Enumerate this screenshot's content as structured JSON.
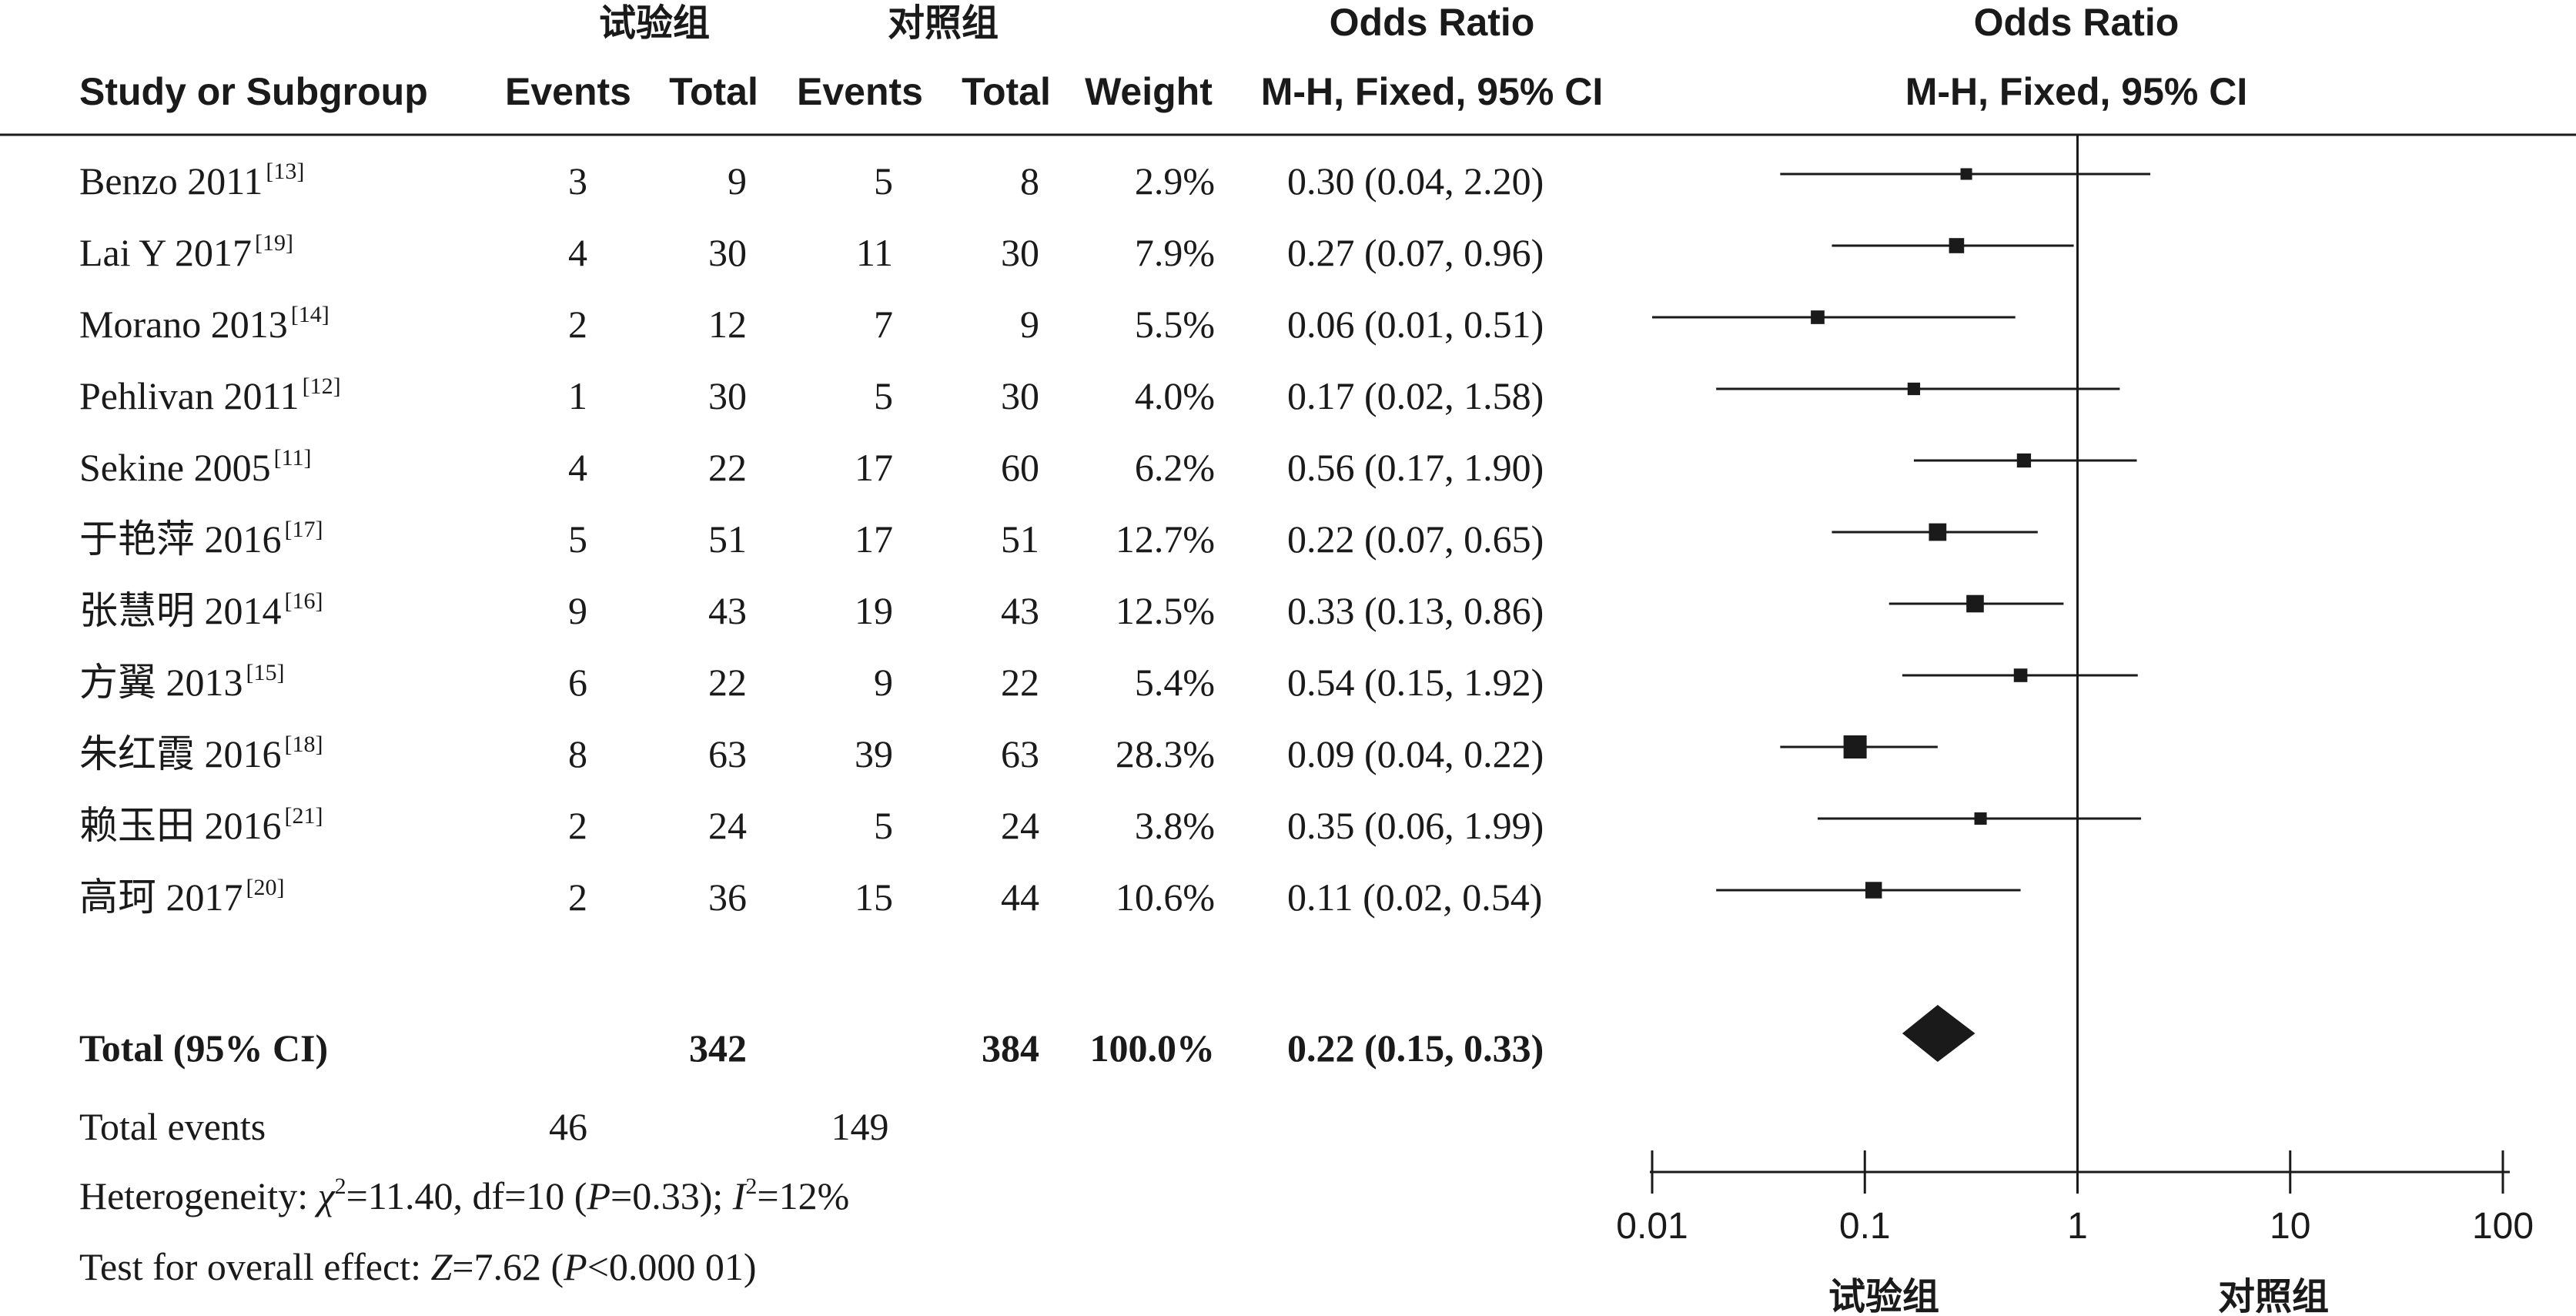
{
  "header": {
    "group1": "试验组",
    "group2": "对照组",
    "study_col": "Study or Subgroup",
    "events1": "Events",
    "total1": "Total",
    "events2": "Events",
    "total2": "Total",
    "weight": "Weight",
    "or_title": "Odds Ratio",
    "or_method": "M-H, Fixed, 95% CI",
    "plot_title": "Odds Ratio",
    "plot_method": "M-H, Fixed, 95% CI"
  },
  "chart_data": {
    "type": "forest",
    "scale": "log",
    "xlim": [
      0.01,
      100
    ],
    "ticks": [
      "0.01",
      "0.1",
      "1",
      "10",
      "100"
    ],
    "tick_values": [
      0.01,
      0.1,
      1,
      10,
      100
    ],
    "favours_left": "试验组",
    "favours_right": "对照组",
    "studies": [
      {
        "name": "Benzo 2011",
        "ref": "[13]",
        "e1": "3",
        "t1": "9",
        "e2": "5",
        "t2": "8",
        "weight": "2.9%",
        "ci_text": "0.30 (0.04, 2.20)",
        "or": 0.3,
        "lo": 0.04,
        "hi": 2.2,
        "w": 2.9
      },
      {
        "name": "Lai Y 2017",
        "ref": "[19]",
        "e1": "4",
        "t1": "30",
        "e2": "11",
        "t2": "30",
        "weight": "7.9%",
        "ci_text": "0.27 (0.07, 0.96)",
        "or": 0.27,
        "lo": 0.07,
        "hi": 0.96,
        "w": 7.9
      },
      {
        "name": "Morano 2013",
        "ref": "[14]",
        "e1": "2",
        "t1": "12",
        "e2": "7",
        "t2": "9",
        "weight": "5.5%",
        "ci_text": "0.06 (0.01, 0.51)",
        "or": 0.06,
        "lo": 0.01,
        "hi": 0.51,
        "w": 5.5
      },
      {
        "name": "Pehlivan 2011",
        "ref": "[12]",
        "e1": "1",
        "t1": "30",
        "e2": "5",
        "t2": "30",
        "weight": "4.0%",
        "ci_text": "0.17 (0.02, 1.58)",
        "or": 0.17,
        "lo": 0.02,
        "hi": 1.58,
        "w": 4.0
      },
      {
        "name": "Sekine 2005",
        "ref": "[11]",
        "e1": "4",
        "t1": "22",
        "e2": "17",
        "t2": "60",
        "weight": "6.2%",
        "ci_text": "0.56 (0.17, 1.90)",
        "or": 0.56,
        "lo": 0.17,
        "hi": 1.9,
        "w": 6.2
      },
      {
        "name": "于艳萍 2016",
        "ref": "[17]",
        "e1": "5",
        "t1": "51",
        "e2": "17",
        "t2": "51",
        "weight": "12.7%",
        "ci_text": "0.22 (0.07, 0.65)",
        "or": 0.22,
        "lo": 0.07,
        "hi": 0.65,
        "w": 12.7
      },
      {
        "name": "张慧明 2014",
        "ref": "[16]",
        "e1": "9",
        "t1": "43",
        "e2": "19",
        "t2": "43",
        "weight": "12.5%",
        "ci_text": "0.33 (0.13, 0.86)",
        "or": 0.33,
        "lo": 0.13,
        "hi": 0.86,
        "w": 12.5
      },
      {
        "name": "方翼 2013",
        "ref": "[15]",
        "e1": "6",
        "t1": "22",
        "e2": "9",
        "t2": "22",
        "weight": "5.4%",
        "ci_text": "0.54 (0.15, 1.92)",
        "or": 0.54,
        "lo": 0.15,
        "hi": 1.92,
        "w": 5.4
      },
      {
        "name": "朱红霞 2016",
        "ref": "[18]",
        "e1": "8",
        "t1": "63",
        "e2": "39",
        "t2": "63",
        "weight": "28.3%",
        "ci_text": "0.09 (0.04, 0.22)",
        "or": 0.09,
        "lo": 0.04,
        "hi": 0.22,
        "w": 28.3
      },
      {
        "name": "赖玉田 2016",
        "ref": "[21]",
        "e1": "2",
        "t1": "24",
        "e2": "5",
        "t2": "24",
        "weight": "3.8%",
        "ci_text": "0.35 (0.06, 1.99)",
        "or": 0.35,
        "lo": 0.06,
        "hi": 1.99,
        "w": 3.8
      },
      {
        "name": "高珂 2017",
        "ref": "[20]",
        "e1": "2",
        "t1": "36",
        "e2": "15",
        "t2": "44",
        "weight": "10.6%",
        "ci_text": "0.11 (0.02, 0.54)",
        "or": 0.11,
        "lo": 0.02,
        "hi": 0.54,
        "w": 10.6
      }
    ],
    "total": {
      "label": "Total (95% CI)",
      "t1": "342",
      "t2": "384",
      "weight": "100.0%",
      "ci_text": "0.22 (0.15, 0.33)",
      "or": 0.22,
      "lo": 0.15,
      "hi": 0.33
    },
    "total_events": {
      "label": "Total events",
      "e1": "46",
      "e2": "149"
    },
    "heterogeneity": {
      "prefix": "Heterogeneity: ",
      "chi_symbol": "χ",
      "chi_sup": "2",
      "chi_rest": "=11.40, df=10 (",
      "p_symbol": "P",
      "p_rest": "=0.33); ",
      "i_symbol": "I",
      "i_sup": "2",
      "i_rest": "=12%"
    },
    "overall_effect": {
      "prefix": "Test for overall effect: ",
      "z_symbol": "Z",
      "z_rest": "=7.62 (",
      "p_symbol": "P",
      "p_rest": "<0.000 01)"
    }
  }
}
